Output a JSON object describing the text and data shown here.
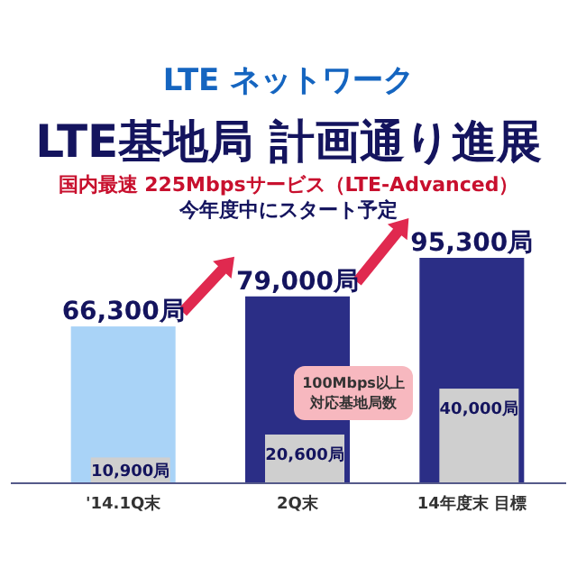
{
  "chart_data": {
    "type": "bar",
    "title": "LTE基地局 計画通り進展",
    "subtitle": "国内最速 225Mbpsサービス（LTE-Advanced）",
    "annotations": [
      "LTE ネットワーク",
      "今年度中にスタート予定"
    ],
    "categories": [
      "'14.1Q末",
      "2Q末",
      "14年度末 目標"
    ],
    "series": [
      {
        "colors": [
          "#a9d3f7",
          "#2b2e86",
          "#2b2e86"
        ],
        "values": [
          66300,
          79000,
          95300
        ],
        "value_labels": [
          "66,300局",
          "79,000局",
          "95,300局"
        ]
      },
      {
        "name": "100Mbps以上対応基地局数",
        "color": "#cfcfcf",
        "values": [
          10900,
          20600,
          40000
        ],
        "value_labels": [
          "10,900局",
          "20,600局",
          "40,000局"
        ]
      }
    ]
  }
}
